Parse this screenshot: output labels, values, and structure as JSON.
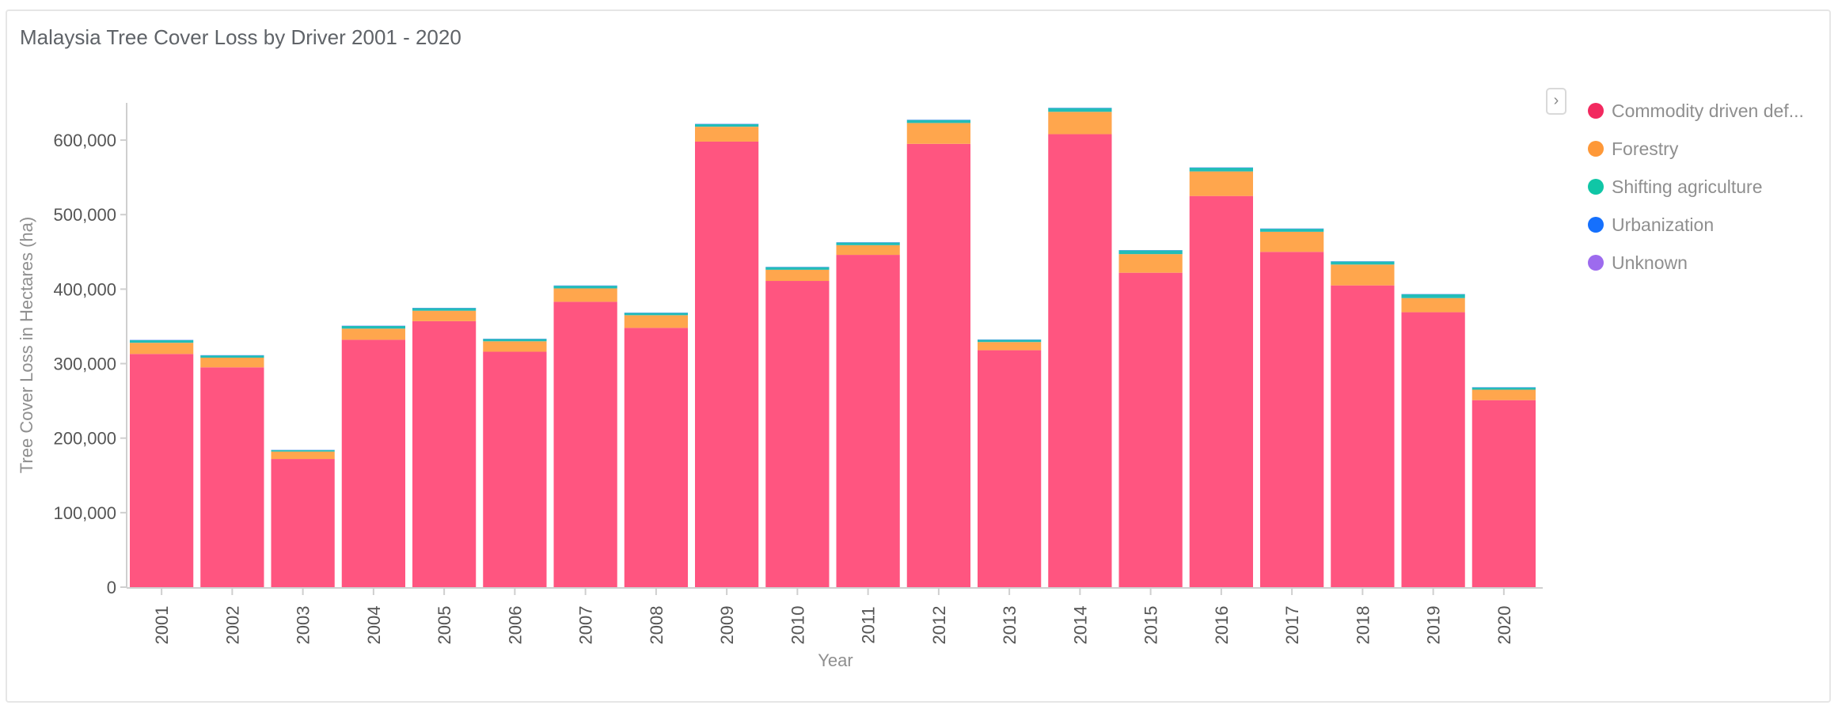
{
  "title": "Malaysia Tree Cover Loss by Driver 2001 - 2020",
  "legend_toggle_icon": "chevron-right-icon",
  "legend": [
    {
      "label": "Commodity driven def...",
      "color": "#f2295f"
    },
    {
      "label": "Forestry",
      "color": "#fe9838"
    },
    {
      "label": "Shifting agriculture",
      "color": "#10c6a6"
    },
    {
      "label": "Urbanization",
      "color": "#1570fd"
    },
    {
      "label": "Unknown",
      "color": "#9d6bee"
    }
  ],
  "chart_data": {
    "type": "bar",
    "stacked": true,
    "title": "Malaysia Tree Cover Loss by Driver 2001 - 2020",
    "xlabel": "Year",
    "ylabel": "Tree Cover Loss in Hectares (ha)",
    "ylim": [
      0,
      650000
    ],
    "yticks": [
      0,
      100000,
      200000,
      300000,
      400000,
      500000,
      600000
    ],
    "ytick_labels": [
      "0",
      "100,000",
      "200,000",
      "300,000",
      "400,000",
      "500,000",
      "600,000"
    ],
    "grid": false,
    "legend_position": "right",
    "categories": [
      "2001",
      "2002",
      "2003",
      "2004",
      "2005",
      "2006",
      "2007",
      "2008",
      "2009",
      "2010",
      "2011",
      "2012",
      "2013",
      "2014",
      "2015",
      "2016",
      "2017",
      "2018",
      "2019",
      "2020"
    ],
    "series": [
      {
        "name": "Commodity driven def...",
        "color": "#ff5580",
        "values": [
          313000,
          295000,
          172000,
          332000,
          357000,
          316000,
          383000,
          348000,
          598000,
          411000,
          446000,
          595000,
          318000,
          608000,
          422000,
          525000,
          450000,
          405000,
          369000,
          251000
        ]
      },
      {
        "name": "Forestry",
        "color": "#ffa64d",
        "values": [
          15000,
          13000,
          10000,
          15000,
          14000,
          14000,
          18000,
          17000,
          20000,
          15000,
          13000,
          28000,
          11000,
          30000,
          25000,
          33000,
          27000,
          28000,
          19000,
          14000
        ]
      },
      {
        "name": "Shifting agriculture",
        "color": "#22bdb8",
        "values": [
          3500,
          3000,
          2000,
          3500,
          3500,
          3000,
          3500,
          3000,
          3500,
          3500,
          3500,
          4000,
          3000,
          5000,
          5000,
          5000,
          4000,
          4000,
          5000,
          3000
        ]
      },
      {
        "name": "Urbanization",
        "color": "#1570fd",
        "values": [
          300,
          300,
          200,
          300,
          300,
          300,
          300,
          300,
          300,
          300,
          300,
          300,
          300,
          300,
          300,
          300,
          300,
          300,
          300,
          300
        ]
      },
      {
        "name": "Unknown",
        "color": "#9d6bee",
        "values": [
          100,
          100,
          100,
          100,
          100,
          100,
          100,
          100,
          100,
          100,
          100,
          100,
          100,
          100,
          100,
          100,
          100,
          100,
          100,
          100
        ]
      }
    ]
  }
}
